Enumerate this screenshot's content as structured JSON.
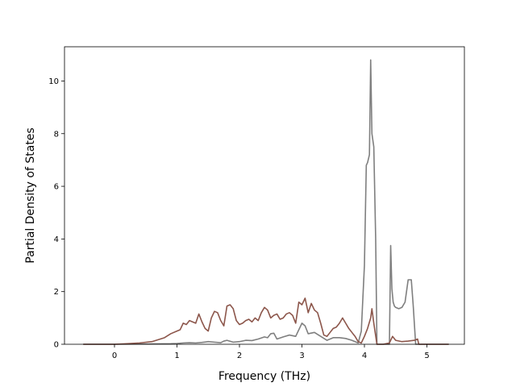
{
  "chart_data": {
    "type": "line",
    "xlabel": "Frequency (THz)",
    "ylabel": "Partial Density of States",
    "xlim": [
      -0.8,
      5.6
    ],
    "ylim": [
      0,
      11.3
    ],
    "xticks": [
      "0",
      "1",
      "2",
      "3",
      "4",
      "5"
    ],
    "yticks": [
      "0",
      "2",
      "4",
      "6",
      "8",
      "10"
    ],
    "grid": false,
    "series": [
      {
        "color": "#7f7f7f",
        "x": [
          -0.5,
          0.0,
          0.5,
          0.9,
          1.0,
          1.1,
          1.2,
          1.3,
          1.4,
          1.5,
          1.6,
          1.7,
          1.75,
          1.8,
          1.9,
          2.0,
          2.1,
          2.2,
          2.3,
          2.4,
          2.45,
          2.5,
          2.55,
          2.6,
          2.7,
          2.8,
          2.9,
          3.0,
          3.05,
          3.1,
          3.2,
          3.3,
          3.4,
          3.5,
          3.6,
          3.7,
          3.8,
          3.9,
          3.95,
          4.0,
          4.03,
          4.05,
          4.08,
          4.1,
          4.12,
          4.15,
          4.18,
          4.2,
          4.22,
          4.25,
          4.4,
          4.42,
          4.44,
          4.46,
          4.48,
          4.5,
          4.55,
          4.6,
          4.65,
          4.7,
          4.75,
          4.78,
          4.82,
          4.85,
          4.87,
          5.0,
          5.35
        ],
        "y": [
          0,
          0,
          0.01,
          0.02,
          0.03,
          0.05,
          0.06,
          0.05,
          0.07,
          0.1,
          0.08,
          0.06,
          0.12,
          0.15,
          0.08,
          0.1,
          0.15,
          0.14,
          0.2,
          0.28,
          0.25,
          0.4,
          0.42,
          0.2,
          0.28,
          0.35,
          0.3,
          0.8,
          0.7,
          0.4,
          0.45,
          0.3,
          0.15,
          0.25,
          0.25,
          0.22,
          0.15,
          0.05,
          0.5,
          3.0,
          6.8,
          6.9,
          7.2,
          10.8,
          8.0,
          7.5,
          4.0,
          0.0,
          0.0,
          0.0,
          0.0,
          3.75,
          2.1,
          1.6,
          1.45,
          1.4,
          1.35,
          1.4,
          1.6,
          2.45,
          2.45,
          1.5,
          0.0,
          0.0,
          0.0,
          0.0,
          0.0
        ]
      },
      {
        "color": "#8c564b",
        "x": [
          -0.5,
          0.0,
          0.2,
          0.4,
          0.6,
          0.8,
          0.9,
          1.0,
          1.05,
          1.1,
          1.15,
          1.2,
          1.25,
          1.3,
          1.35,
          1.4,
          1.45,
          1.5,
          1.55,
          1.6,
          1.65,
          1.7,
          1.75,
          1.8,
          1.85,
          1.9,
          1.95,
          2.0,
          2.05,
          2.1,
          2.15,
          2.2,
          2.25,
          2.3,
          2.35,
          2.4,
          2.45,
          2.5,
          2.55,
          2.6,
          2.65,
          2.7,
          2.75,
          2.8,
          2.85,
          2.9,
          2.95,
          3.0,
          3.05,
          3.1,
          3.15,
          3.2,
          3.25,
          3.3,
          3.35,
          3.4,
          3.45,
          3.5,
          3.55,
          3.6,
          3.65,
          3.7,
          3.75,
          3.8,
          3.85,
          3.9,
          3.95,
          4.0,
          4.05,
          4.1,
          4.12,
          4.15,
          4.2,
          4.3,
          4.4,
          4.45,
          4.5,
          4.6,
          4.7,
          4.8,
          4.85,
          4.87,
          5.35
        ],
        "y": [
          0,
          0,
          0.02,
          0.05,
          0.1,
          0.25,
          0.4,
          0.5,
          0.55,
          0.8,
          0.75,
          0.9,
          0.85,
          0.8,
          1.15,
          0.85,
          0.6,
          0.5,
          1.0,
          1.25,
          1.2,
          0.9,
          0.7,
          1.45,
          1.5,
          1.35,
          0.9,
          0.75,
          0.8,
          0.9,
          0.95,
          0.85,
          1.0,
          0.9,
          1.2,
          1.4,
          1.3,
          1.0,
          1.1,
          1.15,
          0.95,
          1.0,
          1.15,
          1.2,
          1.1,
          0.8,
          1.6,
          1.5,
          1.75,
          1.2,
          1.55,
          1.3,
          1.2,
          0.8,
          0.35,
          0.3,
          0.45,
          0.6,
          0.65,
          0.8,
          1.0,
          0.8,
          0.6,
          0.45,
          0.3,
          0.1,
          0.05,
          0.3,
          0.6,
          1.0,
          1.35,
          0.8,
          0.0,
          0.0,
          0.05,
          0.3,
          0.15,
          0.1,
          0.12,
          0.15,
          0.2,
          0.0,
          0.0
        ]
      }
    ]
  }
}
